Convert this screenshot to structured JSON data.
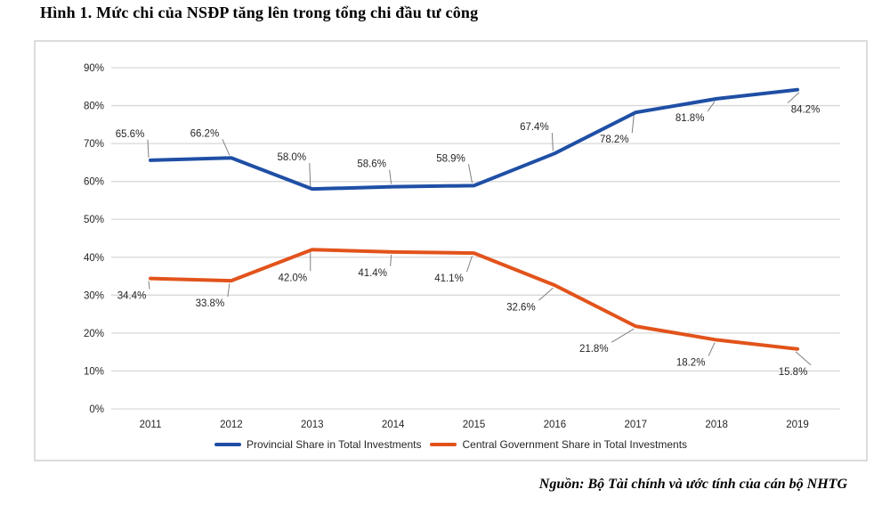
{
  "title": "Hình 1. Mức chi của NSĐP tăng lên trong tổng chi đầu tư công",
  "source": "Nguồn: Bộ Tài chính và ước tính của cán bộ NHTG",
  "chart_data": {
    "type": "line",
    "x": [
      "2011",
      "2012",
      "2013",
      "2014",
      "2015",
      "2016",
      "2017",
      "2018",
      "2019"
    ],
    "series": [
      {
        "name": "Provincial Share in Total Investments",
        "color": "#1F4FA5",
        "values": [
          65.6,
          66.2,
          58.0,
          58.6,
          58.9,
          67.4,
          78.2,
          81.8,
          84.2
        ]
      },
      {
        "name": "Central Government Share in Total Investments",
        "color": "#E2531B",
        "values": [
          34.4,
          33.8,
          42.0,
          41.4,
          41.1,
          32.6,
          21.8,
          18.2,
          15.8
        ]
      }
    ],
    "y_ticks": [
      "0%",
      "10%",
      "20%",
      "30%",
      "40%",
      "50%",
      "60%",
      "70%",
      "80%",
      "90%"
    ],
    "ylim": [
      0,
      90
    ],
    "grid": true,
    "legend_position": "bottom",
    "data_labels": true,
    "label_suffix": "%"
  },
  "colors": {
    "gridline": "#D9D9D9",
    "frame_border": "#DCDCDC",
    "leader_line": "#808080",
    "tick_text": "#262626",
    "label_text": "#262626"
  }
}
